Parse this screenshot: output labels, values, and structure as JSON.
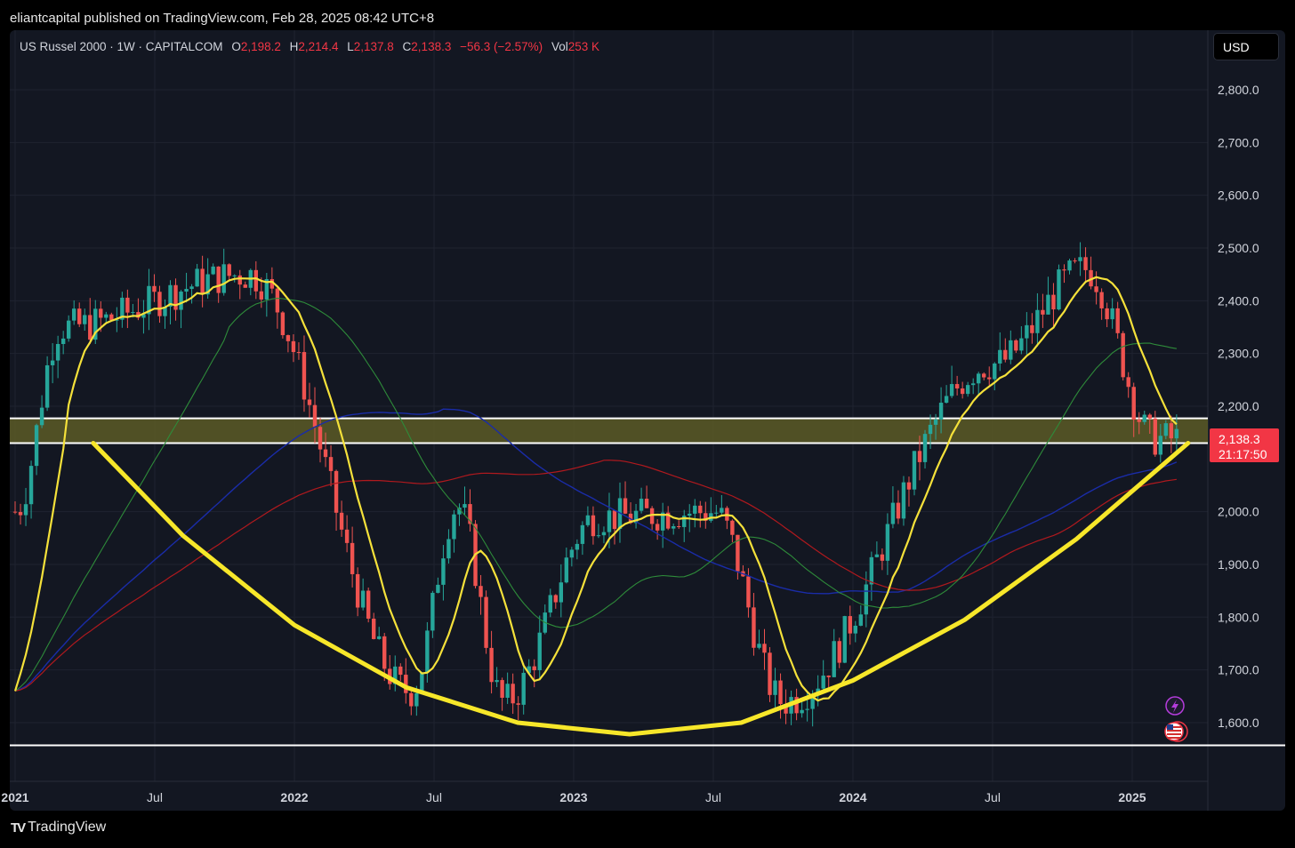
{
  "header": {
    "text": "eliantcapital published on TradingView.com, Feb 28, 2025 08:42 UTC+8"
  },
  "legend": {
    "symbol": "US Russel 2000 · 1W · CAPITALCOM",
    "o_label": "O",
    "o_value": "2,198.2",
    "h_label": "H",
    "h_value": "2,214.4",
    "l_label": "L",
    "l_value": "2,137.8",
    "c_label": "C",
    "c_value": "2,138.3",
    "change": "−56.3 (−2.57%)",
    "vol_label": "Vol",
    "vol_value": "253 K"
  },
  "currency_button": "USD",
  "price_badge": {
    "price": "2,138.3",
    "countdown": "21:17:50",
    "color": "#f23645"
  },
  "footer": {
    "logo": "TV",
    "brand": "TradingView"
  },
  "colors": {
    "up": "#26a69a",
    "down": "#ef5350",
    "ma_yellow": "#f5e13a",
    "ma_green": "#2e8b3a",
    "ma_blue": "#1a2ca8",
    "ma_red": "#b0191e",
    "bowl": "#f7e72a",
    "zone": "#5c5a26"
  },
  "icons": [
    "lightning-icon",
    "us-flag-icon"
  ],
  "chart_data": {
    "type": "candlestick",
    "title": "US Russel 2000 · 1W · CAPITALCOM",
    "x_tick_labels": [
      "2021",
      "Jul",
      "2022",
      "Jul",
      "2023",
      "Jul",
      "2024",
      "Jul",
      "2025"
    ],
    "y_tick_labels": [
      "2,800.0",
      "2,700.0",
      "2,600.0",
      "2,500.0",
      "2,400.0",
      "2,300.0",
      "2,200.0",
      "2,000.0",
      "1,900.0",
      "1,800.0",
      "1,700.0",
      "1,600.0"
    ],
    "ylim": [
      1545,
      2870
    ],
    "xlim_years": [
      2020.98,
      2025.28
    ],
    "resistance_zone": [
      2130,
      2177
    ],
    "support_line": 1557,
    "bowl_curve": [
      [
        2021.28,
        2130
      ],
      [
        2021.6,
        1955
      ],
      [
        2022.0,
        1785
      ],
      [
        2022.4,
        1667
      ],
      [
        2022.8,
        1600
      ],
      [
        2023.2,
        1578
      ],
      [
        2023.6,
        1600
      ],
      [
        2024.0,
        1680
      ],
      [
        2024.4,
        1795
      ],
      [
        2024.8,
        1948
      ],
      [
        2025.2,
        2130
      ]
    ],
    "key_weekly_levels": [
      {
        "date": "2021-01",
        "close": 2000
      },
      {
        "date": "2021-03",
        "close": 2350
      },
      {
        "date": "2021-11",
        "close": 2450
      },
      {
        "date": "2022-06",
        "close": 1660
      },
      {
        "date": "2022-08",
        "close": 2010
      },
      {
        "date": "2022-10",
        "close": 1640
      },
      {
        "date": "2023-02",
        "close": 1990
      },
      {
        "date": "2023-07",
        "close": 2000
      },
      {
        "date": "2023-10",
        "close": 1640
      },
      {
        "date": "2024-07",
        "close": 2280
      },
      {
        "date": "2024-11",
        "close": 2460
      },
      {
        "date": "2025-02",
        "close": 2138.3
      }
    ]
  }
}
